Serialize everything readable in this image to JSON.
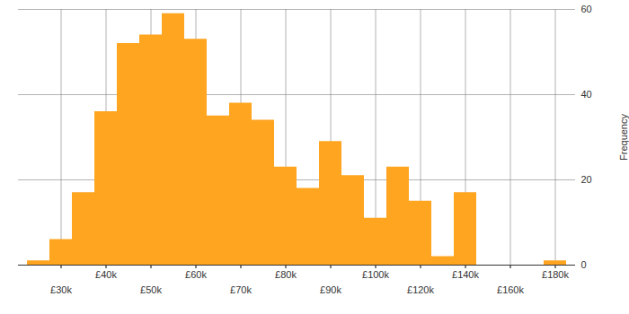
{
  "chart_data": {
    "type": "bar",
    "categories": [
      null,
      "£30k",
      null,
      "£40k",
      null,
      "£50k",
      null,
      "£60k",
      null,
      "£70k",
      null,
      "£80k",
      null,
      "£90k",
      null,
      "£100k",
      null,
      "£120k",
      null,
      "£140k",
      null,
      "£160k",
      null,
      "£180k"
    ],
    "values": [
      1,
      6,
      17,
      36,
      52,
      54,
      59,
      53,
      35,
      38,
      34,
      23,
      18,
      29,
      21,
      11,
      23,
      15,
      2,
      17,
      0,
      0,
      0,
      1
    ],
    "color": "#ffa51f",
    "y_label": "Frequency",
    "ylim": [
      0,
      60
    ],
    "yticks": [
      0,
      20,
      40,
      60
    ],
    "grid": true
  }
}
